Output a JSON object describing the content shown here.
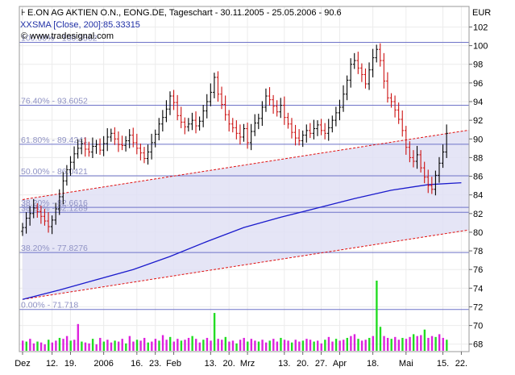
{
  "chart_data": {
    "type": "candlestick",
    "header": {
      "title": "E.ON AG AKTIEN O.N., EONG.DE, Tageschart - 30.11.2005 - 25.05.2006 - 90.6",
      "sma": "SMA [Close, 200]:85.33315",
      "source": "© www.tradesignal.com"
    },
    "currency": "EUR",
    "y_ticks": [
      68,
      70,
      72,
      74,
      76,
      78,
      80,
      82,
      84,
      86,
      88,
      90,
      92,
      94,
      96,
      98,
      100,
      102
    ],
    "ylim": [
      67.2,
      104.2
    ],
    "x_labels": [
      "Dez",
      "12.",
      "19.",
      "2006",
      "16.",
      "23.",
      "Feb",
      "13.",
      "20.",
      "Mrz",
      "13.",
      "20.",
      "27.",
      "Apr",
      "18.",
      "Mai",
      "15.",
      "22."
    ],
    "x_label_bar_index": [
      0,
      8,
      13,
      22,
      31,
      36,
      41,
      51,
      56,
      61,
      71,
      76,
      81,
      86,
      95,
      104,
      114,
      119
    ],
    "fibonacci": [
      {
        "label": "100.00% - 100.3562",
        "value": 100.3562
      },
      {
        "label": "76.40% - 93.6052",
        "value": 93.6052
      },
      {
        "label": "61.80% - 89.4241",
        "value": 89.4241
      },
      {
        "label": "50.00% - 86.0421",
        "value": 86.0421
      },
      {
        "label": "38.20% - 82.6616",
        "value": 82.6616
      },
      {
        "label": "38.20% - 82.1289",
        "value": 82.1289
      },
      {
        "label": "38.20% - 77.8276",
        "value": 77.8276
      },
      {
        "label": "0.00% - 71.718",
        "value": 71.718
      }
    ],
    "channel": {
      "upper": [
        [
          0,
          83.5
        ],
        [
          122,
          91.0
        ]
      ],
      "lower": [
        [
          0,
          72.8
        ],
        [
          122,
          80.3
        ]
      ]
    },
    "sma200": [
      [
        0,
        72.8
      ],
      [
        10,
        73.8
      ],
      [
        20,
        74.9
      ],
      [
        30,
        76.0
      ],
      [
        40,
        77.4
      ],
      [
        50,
        79.0
      ],
      [
        60,
        80.5
      ],
      [
        70,
        81.6
      ],
      [
        80,
        82.6
      ],
      [
        90,
        83.6
      ],
      [
        100,
        84.5
      ],
      [
        110,
        85.1
      ],
      [
        119,
        85.3
      ]
    ],
    "closes": [
      80.5,
      81.5,
      82.0,
      82.6,
      82.2,
      81.7,
      81.2,
      80.6,
      81.3,
      82.5,
      83.8,
      85.5,
      86.7,
      87.5,
      88.4,
      89.0,
      89.5,
      88.9,
      88.6,
      89.2,
      89.4,
      88.8,
      89.5,
      90.2,
      90.6,
      90.0,
      89.4,
      89.3,
      89.8,
      90.4,
      89.6,
      89.0,
      88.5,
      87.9,
      88.6,
      89.6,
      90.5,
      91.6,
      92.3,
      93.2,
      94.6,
      93.9,
      92.5,
      91.8,
      91.3,
      91.6,
      92.0,
      91.4,
      91.9,
      93.0,
      94.0,
      95.0,
      96.6,
      94.8,
      93.7,
      92.6,
      91.6,
      91.2,
      90.6,
      90.2,
      91.1,
      89.6,
      90.8,
      91.7,
      92.2,
      93.4,
      94.6,
      94.2,
      93.5,
      92.9,
      93.6,
      92.3,
      91.6,
      90.7,
      90.1,
      89.8,
      90.4,
      90.9,
      90.6,
      91.1,
      91.5,
      90.9,
      90.6,
      91.2,
      92.0,
      92.8,
      93.4,
      94.8,
      96.3,
      98.0,
      98.4,
      97.6,
      96.9,
      95.9,
      97.4,
      98.7,
      99.6,
      98.4,
      96.2,
      94.4,
      94.0,
      93.1,
      92.1,
      90.9,
      89.1,
      88.0,
      87.6,
      88.3,
      86.9,
      85.9,
      85.0,
      84.6,
      86.1,
      87.4,
      88.6,
      90.6
    ],
    "volumes": [
      1.1,
      1.0,
      1.3,
      0.8,
      1.0,
      0.9,
      0.7,
      1.2,
      0.9,
      1.1,
      1.4,
      1.3,
      1.6,
      1.1,
      1.2,
      2.9,
      1.0,
      0.9,
      0.8,
      1.3,
      0.7,
      1.4,
      1.0,
      1.2,
      0.9,
      1.1,
      1.0,
      1.3,
      0.8,
      1.6,
      1.0,
      1.2,
      1.1,
      1.4,
      0.9,
      1.0,
      1.3,
      1.1,
      1.7,
      1.2,
      1.5,
      1.0,
      1.3,
      1.1,
      1.2,
      1.4,
      1.6,
      1.3,
      0.9,
      1.2,
      1.4,
      1.1,
      4.1,
      1.3,
      1.2,
      1.5,
      1.0,
      1.1,
      0.8,
      1.2,
      1.4,
      1.0,
      1.3,
      1.1,
      1.0,
      1.2,
      0.9,
      1.1,
      1.3,
      1.0,
      1.4,
      1.2,
      1.1,
      0.9,
      1.2,
      1.0,
      1.1,
      1.3,
      1.2,
      1.0,
      1.1,
      0.8,
      1.2,
      1.5,
      1.0,
      1.3,
      1.1,
      1.2,
      1.4,
      1.6,
      1.8,
      1.3,
      1.1,
      1.2,
      1.4,
      1.6,
      7.6,
      2.6,
      1.6,
      1.4,
      1.3,
      1.5,
      1.2,
      1.4,
      1.3,
      1.5,
      1.8,
      1.6,
      1.7,
      2.3,
      1.4,
      1.6,
      1.5,
      1.8,
      1.4,
      1.2
    ]
  }
}
